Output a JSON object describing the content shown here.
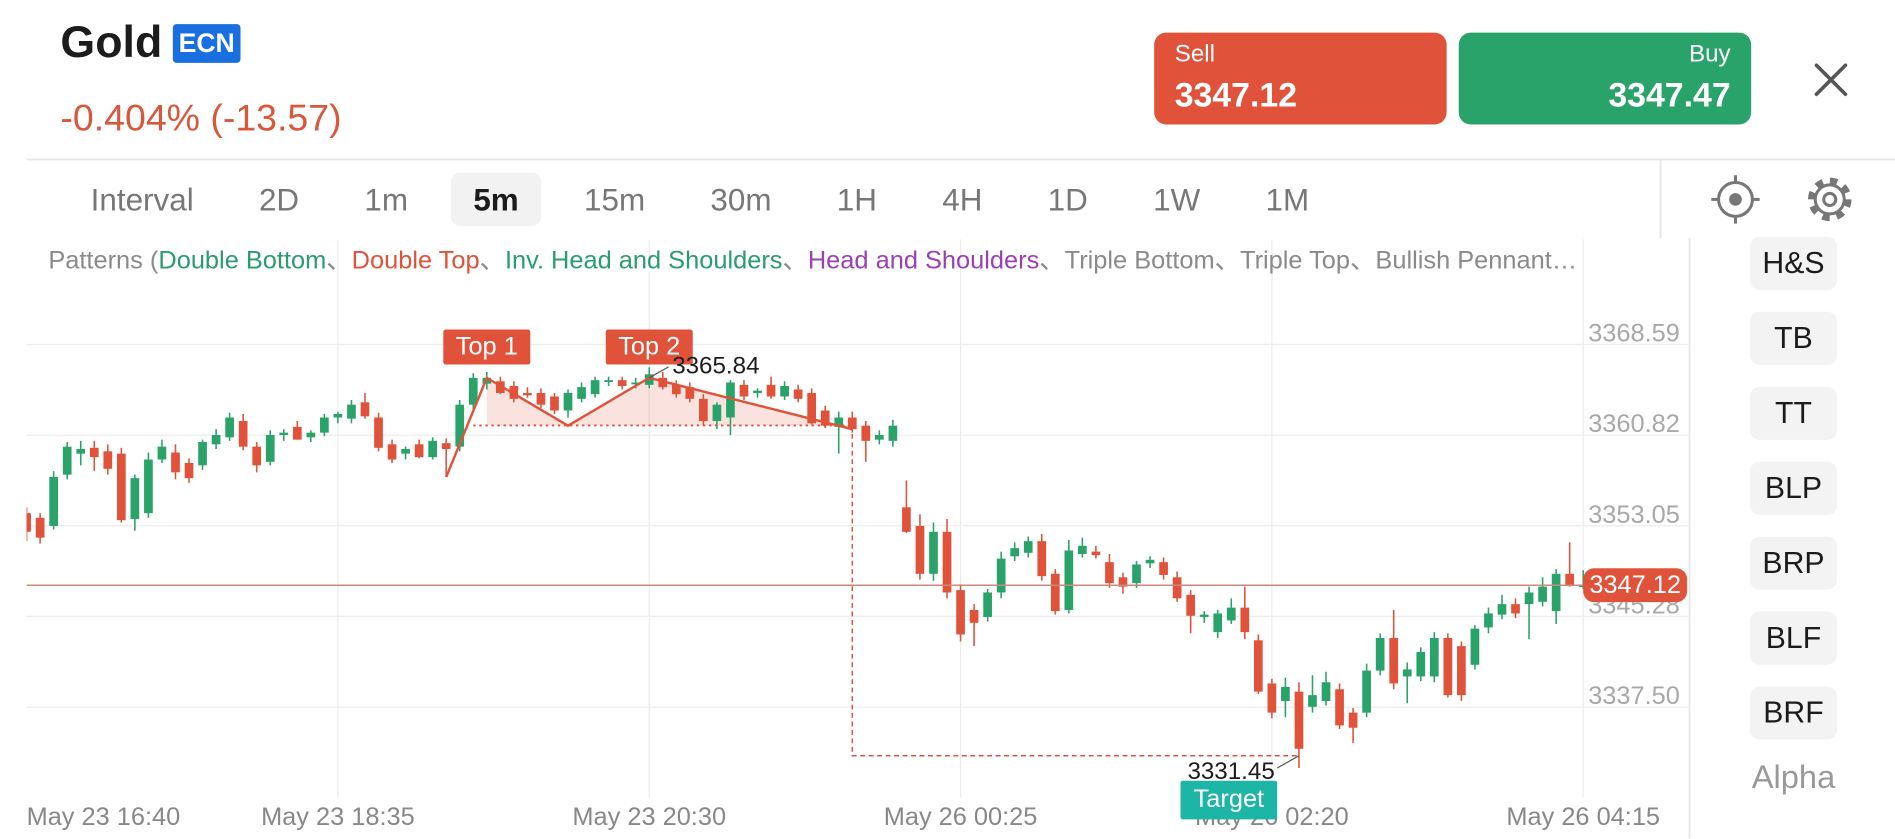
{
  "header": {
    "symbol": "Gold",
    "badge": "ECN",
    "change": "-0.404% (-13.57)",
    "sell": {
      "label": "Sell",
      "price": 3347.12
    },
    "buy": {
      "label": "Buy",
      "price": 3347.47
    }
  },
  "intervals": {
    "label": "Interval",
    "items": [
      "2D",
      "1m",
      "5m",
      "15m",
      "30m",
      "1H",
      "4H",
      "1D",
      "1W",
      "1M"
    ],
    "selected": 2
  },
  "sidebar": {
    "buttons": [
      "H&S",
      "TB",
      "TT",
      "BLP",
      "BRP",
      "BLF",
      "BRF"
    ],
    "footer": "Alpha"
  },
  "chart_data": {
    "type": "candlestick",
    "legend": {
      "prefix": "Patterns (",
      "separator": "、",
      "items": [
        {
          "name": "Double Bottom",
          "color": "#2a9d6e"
        },
        {
          "name": "Double Top",
          "color": "#e0533a"
        },
        {
          "name": "Inv. Head and Shoulders",
          "color": "#2a9d6e"
        },
        {
          "name": "Head and Shoulders",
          "color": "#9b3fb5"
        },
        {
          "name": "Triple Bottom",
          "color": "#8a8a8a"
        },
        {
          "name": "Triple Top",
          "color": "#8a8a8a"
        },
        {
          "name": "Bullish Pennant…",
          "color": "#8a8a8a"
        }
      ]
    },
    "up_color": "#2aa36b",
    "down_color": "#e0533a",
    "categories": [
      "May 23 16:40",
      null,
      null,
      null,
      null,
      null,
      null,
      null,
      null,
      null,
      null,
      null,
      null,
      null,
      null,
      null,
      null,
      null,
      null,
      null,
      null,
      null,
      null,
      "May 23 18:35",
      null,
      null,
      null,
      null,
      null,
      null,
      null,
      null,
      null,
      null,
      null,
      null,
      null,
      null,
      null,
      null,
      null,
      null,
      null,
      null,
      null,
      null,
      "May 23 20:30",
      null,
      null,
      null,
      null,
      null,
      null,
      null,
      null,
      null,
      null,
      null,
      null,
      null,
      null,
      null,
      null,
      null,
      null,
      null,
      null,
      null,
      null,
      "May 26 00:25",
      null,
      null,
      null,
      null,
      null,
      null,
      null,
      null,
      null,
      null,
      null,
      null,
      null,
      null,
      null,
      null,
      null,
      null,
      null,
      null,
      null,
      null,
      "May 26 02:20",
      null,
      null,
      null,
      null,
      null,
      null,
      null,
      null,
      null,
      null,
      null,
      null,
      null,
      null,
      null,
      null,
      null,
      null,
      null,
      null,
      null,
      null,
      "May 26 04:15"
    ],
    "candles": [
      [
        3353.3,
        3353.8,
        3350.9,
        3351.7
      ],
      [
        3352.9,
        3353.3,
        3350.7,
        3351.2
      ],
      [
        3352.2,
        3356.9,
        3351.9,
        3356.4
      ],
      [
        3356.6,
        3359.4,
        3356.2,
        3359.0
      ],
      [
        3358.4,
        3359.5,
        3357.4,
        3358.8
      ],
      [
        3358.9,
        3359.5,
        3356.9,
        3358.1
      ],
      [
        3358.6,
        3359.2,
        3356.6,
        3357.1
      ],
      [
        3358.4,
        3358.9,
        3352.5,
        3352.7
      ],
      [
        3352.8,
        3356.6,
        3351.8,
        3356.3
      ],
      [
        3353.3,
        3358.5,
        3352.9,
        3357.9
      ],
      [
        3357.9,
        3359.6,
        3357.6,
        3359.0
      ],
      [
        3358.5,
        3359.2,
        3356.2,
        3356.8
      ],
      [
        3357.6,
        3358.0,
        3355.9,
        3356.3
      ],
      [
        3357.4,
        3359.6,
        3357.0,
        3359.4
      ],
      [
        3359.2,
        3360.5,
        3358.8,
        3360.0
      ],
      [
        3359.8,
        3361.9,
        3359.5,
        3361.5
      ],
      [
        3361.2,
        3361.8,
        3358.7,
        3359.0
      ],
      [
        3359.0,
        3359.4,
        3356.8,
        3357.4
      ],
      [
        3357.7,
        3360.4,
        3357.4,
        3360.0
      ],
      [
        3360.0,
        3360.5,
        3359.5,
        3360.2
      ],
      [
        3360.7,
        3361.2,
        3359.6,
        3359.6
      ],
      [
        3359.8,
        3360.4,
        3359.4,
        3360.2
      ],
      [
        3360.2,
        3361.8,
        3359.9,
        3361.5
      ],
      [
        3361.5,
        3362.0,
        3361.0,
        3361.8
      ],
      [
        3361.4,
        3363.0,
        3361.0,
        3362.6
      ],
      [
        3362.8,
        3363.6,
        3361.4,
        3361.6
      ],
      [
        3361.5,
        3361.9,
        3358.6,
        3358.9
      ],
      [
        3359.2,
        3359.6,
        3357.6,
        3357.9
      ],
      [
        3358.4,
        3359.0,
        3357.9,
        3358.8
      ],
      [
        3359.2,
        3359.6,
        3358.0,
        3358.1
      ],
      [
        3358.1,
        3359.8,
        3357.9,
        3359.5
      ],
      [
        3359.3,
        3359.7,
        3356.4,
        3358.8
      ],
      [
        3359.0,
        3363.0,
        3358.6,
        3362.6
      ],
      [
        3362.6,
        3365.3,
        3362.2,
        3364.9
      ],
      [
        3364.4,
        3365.4,
        3363.9,
        3364.9
      ],
      [
        3364.6,
        3365.0,
        3363.5,
        3363.6
      ],
      [
        3364.2,
        3364.6,
        3362.8,
        3363.1
      ],
      [
        3363.6,
        3364.1,
        3363.2,
        3363.4
      ],
      [
        3363.6,
        3364.0,
        3362.3,
        3362.6
      ],
      [
        3363.3,
        3363.6,
        3361.8,
        3362.1
      ],
      [
        3362.1,
        3363.9,
        3361.5,
        3363.6
      ],
      [
        3363.1,
        3364.5,
        3362.8,
        3364.1
      ],
      [
        3363.5,
        3365.0,
        3363.2,
        3364.7
      ],
      [
        3364.6,
        3365.0,
        3364.2,
        3364.7
      ],
      [
        3364.7,
        3365.0,
        3363.9,
        3364.2
      ],
      [
        3364.4,
        3364.9,
        3364.0,
        3364.5
      ],
      [
        3364.3,
        3365.8,
        3364.0,
        3365.2
      ],
      [
        3364.9,
        3365.4,
        3363.9,
        3364.1
      ],
      [
        3364.3,
        3364.7,
        3363.2,
        3363.5
      ],
      [
        3364.1,
        3364.5,
        3362.8,
        3363.1
      ],
      [
        3363.1,
        3363.5,
        3360.8,
        3361.2
      ],
      [
        3361.2,
        3362.8,
        3360.5,
        3362.6
      ],
      [
        3361.5,
        3364.7,
        3360.0,
        3364.5
      ],
      [
        3364.3,
        3364.7,
        3363.0,
        3363.3
      ],
      [
        3363.6,
        3364.0,
        3363.2,
        3363.8
      ],
      [
        3364.3,
        3365.0,
        3363.1,
        3363.3
      ],
      [
        3363.3,
        3364.6,
        3363.0,
        3364.2
      ],
      [
        3363.9,
        3364.3,
        3362.8,
        3363.1
      ],
      [
        3363.6,
        3364.0,
        3360.9,
        3361.0
      ],
      [
        3362.1,
        3362.5,
        3360.6,
        3360.8
      ],
      [
        3360.7,
        3362.0,
        3358.4,
        3361.5
      ],
      [
        3361.5,
        3362.0,
        3360.2,
        3360.5
      ],
      [
        3360.8,
        3361.2,
        3357.7,
        3359.5
      ],
      [
        3359.6,
        3360.4,
        3359.2,
        3360.0
      ],
      [
        3359.5,
        3361.3,
        3359.0,
        3360.8
      ],
      [
        3353.8,
        3356.1,
        3351.6,
        3351.7
      ],
      [
        3352.2,
        3353.2,
        3347.6,
        3348.1
      ],
      [
        3348.1,
        3352.5,
        3347.5,
        3351.7
      ],
      [
        3351.7,
        3352.8,
        3346.0,
        3346.5
      ],
      [
        3346.7,
        3347.2,
        3342.3,
        3342.9
      ],
      [
        3345.0,
        3345.5,
        3341.9,
        3343.9
      ],
      [
        3344.4,
        3346.8,
        3344.0,
        3346.5
      ],
      [
        3346.5,
        3350.0,
        3346.0,
        3349.4
      ],
      [
        3349.6,
        3350.8,
        3349.2,
        3350.3
      ],
      [
        3349.9,
        3351.3,
        3349.5,
        3350.9
      ],
      [
        3350.9,
        3351.5,
        3347.5,
        3347.9
      ],
      [
        3348.1,
        3348.5,
        3344.6,
        3344.9
      ],
      [
        3345.0,
        3351.0,
        3344.7,
        3350.1
      ],
      [
        3349.8,
        3351.2,
        3349.5,
        3350.5
      ],
      [
        3350.0,
        3350.5,
        3349.4,
        3349.7
      ],
      [
        3349.1,
        3349.8,
        3346.9,
        3347.3
      ],
      [
        3347.8,
        3348.2,
        3346.4,
        3347.0
      ],
      [
        3347.3,
        3349.2,
        3346.9,
        3348.9
      ],
      [
        3349.0,
        3349.6,
        3348.6,
        3349.3
      ],
      [
        3349.1,
        3349.5,
        3347.6,
        3348.0
      ],
      [
        3347.8,
        3348.3,
        3345.7,
        3346.0
      ],
      [
        3346.3,
        3346.7,
        3343.0,
        3344.5
      ],
      [
        3344.4,
        3344.9,
        3343.9,
        3344.6
      ],
      [
        3343.1,
        3345.0,
        3342.6,
        3344.7
      ],
      [
        3344.1,
        3346.0,
        3343.8,
        3345.2
      ],
      [
        3345.2,
        3347.0,
        3342.5,
        3343.1
      ],
      [
        3342.4,
        3342.9,
        3337.8,
        3338.0
      ],
      [
        3338.7,
        3339.1,
        3335.7,
        3336.2
      ],
      [
        3337.2,
        3339.2,
        3335.8,
        3338.4
      ],
      [
        3338.0,
        3338.8,
        3331.45,
        3333.1
      ],
      [
        3336.7,
        3339.4,
        3336.2,
        3337.7
      ],
      [
        3337.2,
        3339.7,
        3336.8,
        3338.8
      ],
      [
        3338.2,
        3338.7,
        3334.8,
        3335.1
      ],
      [
        3336.2,
        3336.6,
        3333.6,
        3334.9
      ],
      [
        3336.2,
        3340.4,
        3335.8,
        3339.8
      ],
      [
        3339.8,
        3343.0,
        3339.4,
        3342.6
      ],
      [
        3342.6,
        3345.0,
        3338.2,
        3338.7
      ],
      [
        3339.3,
        3340.5,
        3337.0,
        3339.9
      ],
      [
        3339.3,
        3341.8,
        3338.9,
        3341.4
      ],
      [
        3339.3,
        3343.1,
        3338.8,
        3342.6
      ],
      [
        3342.6,
        3343.0,
        3337.5,
        3337.7
      ],
      [
        3341.9,
        3342.3,
        3337.2,
        3337.7
      ],
      [
        3340.3,
        3343.7,
        3339.9,
        3343.4
      ],
      [
        3343.5,
        3345.2,
        3343.0,
        3344.7
      ],
      [
        3344.6,
        3346.3,
        3344.2,
        3345.5
      ],
      [
        3345.5,
        3346.0,
        3344.3,
        3344.7
      ],
      [
        3345.5,
        3347.0,
        3342.5,
        3346.5
      ],
      [
        3345.7,
        3347.8,
        3345.3,
        3347.0
      ],
      [
        3344.9,
        3348.5,
        3343.8,
        3348.1
      ],
      [
        3348.1,
        3350.8,
        3347.0,
        3347.1
      ],
      [
        3347.1,
        3348.4,
        3346.8,
        3347.12
      ]
    ],
    "ylim": [
      3328.91,
      3376.57
    ],
    "yticks": [
      3368.59,
      3360.82,
      3353.05,
      3345.28,
      {
        "value": 3337.5,
        "label": "3337.50"
      }
    ],
    "grid": true,
    "last_price": {
      "value": 3347.12,
      "color": "#e0533a"
    },
    "pattern": {
      "color": "#e0533a",
      "points": [
        [
          31,
          3356.4
        ],
        [
          34,
          3364.9
        ],
        [
          40,
          3360.8
        ],
        [
          46,
          3364.9
        ],
        [
          61,
          3360.5
        ]
      ],
      "top_labels": [
        "Top 1",
        "Top 2"
      ],
      "peak_value": 3365.84,
      "neckline": {
        "value": 3360.82,
        "from": 33,
        "to": 61
      },
      "target": {
        "value": 3332.5,
        "from": 61,
        "to": 94,
        "label": "Target"
      },
      "low": {
        "value": 3331.45,
        "index": 94
      }
    }
  }
}
